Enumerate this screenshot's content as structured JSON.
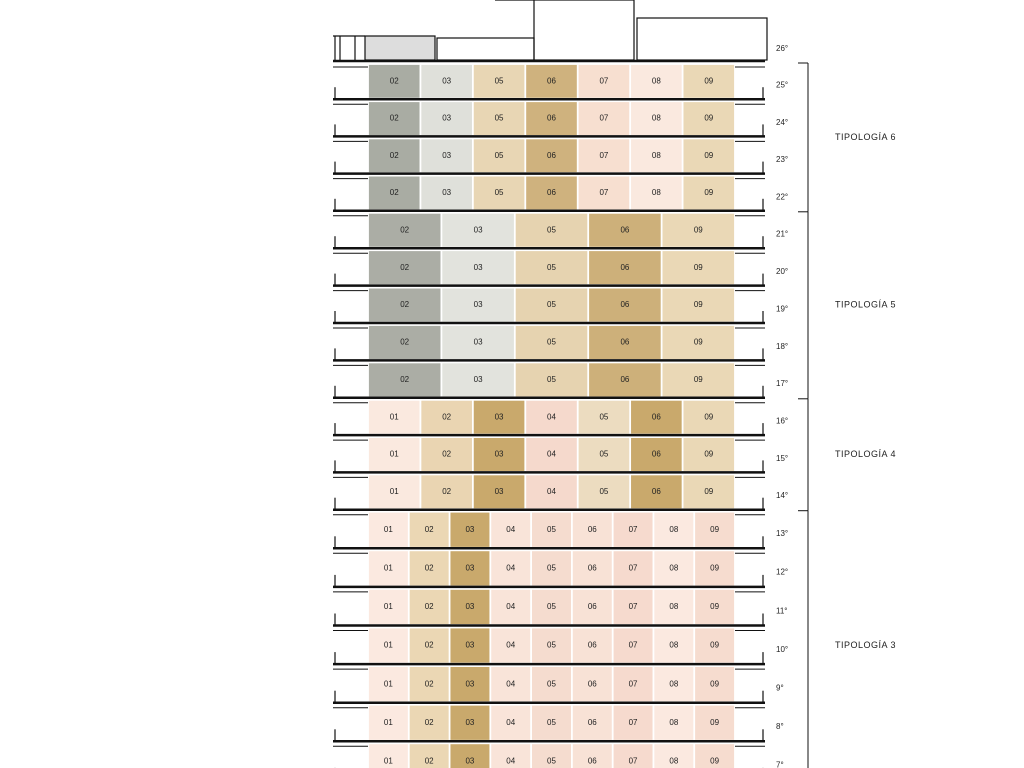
{
  "top_floor_label": "26°",
  "typologies": [
    {
      "label": "TIPOLOGÍA 6",
      "floors": [
        "25°",
        "24°",
        "23°",
        "22°"
      ],
      "units": [
        "02",
        "03",
        "05",
        "06",
        "07",
        "08",
        "09"
      ],
      "unit_colors": [
        "#a9aca3",
        "#dfe0da",
        "#e8d6b4",
        "#cfb27e",
        "#f7dfd0",
        "#fae9df",
        "#ead8b6"
      ]
    },
    {
      "label": "TIPOLOGÍA 5",
      "floors": [
        "21°",
        "20°",
        "19°",
        "18°",
        "17°"
      ],
      "units": [
        "02",
        "03",
        "05",
        "06",
        "09"
      ],
      "unit_colors": [
        "#abada5",
        "#e2e3dd",
        "#e6d3b0",
        "#cdb07a",
        "#ead8b6"
      ]
    },
    {
      "label": "TIPOLOGÍA 4",
      "floors": [
        "16°",
        "15°",
        "14°"
      ],
      "units": [
        "01",
        "02",
        "03",
        "04",
        "05",
        "06",
        "09"
      ],
      "unit_colors": [
        "#fae9df",
        "#ead5b2",
        "#c9a96c",
        "#f5d9cc",
        "#ecdcc0",
        "#c9a96c",
        "#ead8b6"
      ]
    },
    {
      "label": "TIPOLOGÍA 3",
      "floors": [
        "13°",
        "12°",
        "11°",
        "10°",
        "9°",
        "8°",
        "7°"
      ],
      "units": [
        "01",
        "02",
        "03",
        "04",
        "05",
        "06",
        "07",
        "08",
        "09"
      ],
      "unit_colors": [
        "#fbe9e0",
        "#ebd7b4",
        "#c9a96c",
        "#f9e4d9",
        "#f5dccf",
        "#f8e2d6",
        "#f6dace",
        "#fbe9e0",
        "#f6dccf"
      ]
    }
  ]
}
